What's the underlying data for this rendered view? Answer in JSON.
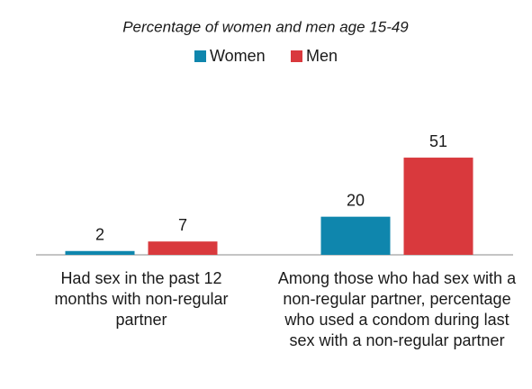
{
  "chart_data": {
    "type": "bar",
    "title": "Percentage of women and men age 15-49",
    "categories": [
      "Had sex in the past 12 months with non-regular partner",
      "Among those who had sex with a non-regular partner, percentage who used a condom during last sex with a non-regular partner"
    ],
    "series": [
      {
        "name": "Women",
        "color": "#0f86ad",
        "values": [
          2,
          20
        ]
      },
      {
        "name": "Men",
        "color": "#d9393d",
        "values": [
          7,
          51
        ]
      }
    ],
    "ylim": [
      0,
      60
    ]
  }
}
